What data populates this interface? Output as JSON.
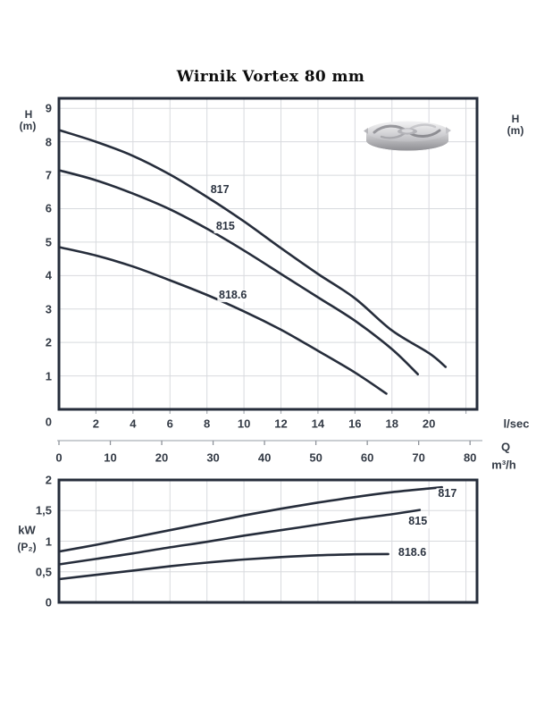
{
  "page": {
    "title": "Wirnik Vortex 80 mm"
  },
  "colors": {
    "curve": "#262d3b",
    "plot_border": "#262d3b",
    "grid": "#d8dade",
    "tick_text": "#343b46",
    "q_axis_line": "#b9bdc3",
    "q_axis_tick": "#8f949b"
  },
  "impeller": {
    "icon": "vortex-impeller-photo"
  },
  "units": {
    "flow_primary": "l/sec",
    "flow_symbol": "Q",
    "flow_secondary": "m³/h"
  },
  "chart_data": [
    {
      "id": "head_chart",
      "type": "line",
      "title": "Wirnik Vortex 80 mm",
      "ylabel": "H (m)",
      "ylabel_lines": [
        "H",
        "(m)"
      ],
      "ylabel_right_lines": [
        "H",
        "(m)"
      ],
      "x_axis": {
        "unit": "l/sec",
        "min": 0,
        "max": 22.6,
        "grid_step": 2,
        "tick_values": [
          2,
          4,
          6,
          8,
          10,
          12,
          14,
          16,
          18,
          20
        ],
        "origin_label": "0"
      },
      "x_axis_secondary": {
        "symbol": "Q",
        "unit": "m³/h",
        "tick_values": [
          0,
          10,
          20,
          30,
          40,
          50,
          60,
          70,
          80
        ],
        "lsec_per_unit": 0.27778
      },
      "y_axis": {
        "min": 0,
        "max": 9.3,
        "grid_step": 1,
        "tick_values": [
          9,
          8,
          7,
          6,
          5,
          4,
          3,
          2,
          1
        ]
      },
      "series": [
        {
          "name": "817",
          "points": [
            [
              0,
              8.35
            ],
            [
              2,
              8.0
            ],
            [
              4,
              7.58
            ],
            [
              6,
              7.02
            ],
            [
              8,
              6.35
            ],
            [
              10,
              5.62
            ],
            [
              12,
              4.82
            ],
            [
              14,
              4.05
            ],
            [
              16,
              3.32
            ],
            [
              18,
              2.36
            ],
            [
              20,
              1.68
            ],
            [
              20.9,
              1.27
            ]
          ],
          "label_at": [
            8.7,
            6.55
          ]
        },
        {
          "name": "815",
          "points": [
            [
              0,
              7.15
            ],
            [
              2,
              6.85
            ],
            [
              4,
              6.45
            ],
            [
              6,
              5.98
            ],
            [
              8,
              5.4
            ],
            [
              10,
              4.75
            ],
            [
              12,
              4.05
            ],
            [
              14,
              3.35
            ],
            [
              16,
              2.65
            ],
            [
              18,
              1.8
            ],
            [
              19.4,
              1.05
            ]
          ],
          "label_at": [
            9.0,
            5.45
          ]
        },
        {
          "name": "818.6",
          "points": [
            [
              0,
              4.85
            ],
            [
              2,
              4.6
            ],
            [
              4,
              4.27
            ],
            [
              6,
              3.86
            ],
            [
              8,
              3.42
            ],
            [
              10,
              2.93
            ],
            [
              12,
              2.38
            ],
            [
              14,
              1.75
            ],
            [
              16,
              1.1
            ],
            [
              17.7,
              0.47
            ]
          ],
          "label_at": [
            9.4,
            3.4
          ]
        }
      ]
    },
    {
      "id": "power_chart",
      "type": "line",
      "ylabel": "kW (P₂)",
      "ylabel_lines": [
        "kW",
        "(P₂)"
      ],
      "x_axis": {
        "min": 0,
        "max": 22.6,
        "grid_step": 2
      },
      "y_axis": {
        "min": 0,
        "max": 2,
        "grid_step": 0.5,
        "tick_values": [
          2,
          1.5,
          1,
          0.5,
          0
        ],
        "tick_labels": [
          "2",
          "1,5",
          "1",
          "0,5",
          "0"
        ]
      },
      "series": [
        {
          "name": "817",
          "points": [
            [
              0,
              0.83
            ],
            [
              2,
              0.94
            ],
            [
              4,
              1.06
            ],
            [
              6,
              1.18
            ],
            [
              8,
              1.3
            ],
            [
              10,
              1.42
            ],
            [
              12,
              1.53
            ],
            [
              14,
              1.63
            ],
            [
              16,
              1.72
            ],
            [
              18,
              1.8
            ],
            [
              20,
              1.86
            ],
            [
              20.7,
              1.88
            ]
          ],
          "label_at": [
            21.0,
            1.76
          ]
        },
        {
          "name": "815",
          "points": [
            [
              0,
              0.62
            ],
            [
              2,
              0.71
            ],
            [
              4,
              0.8
            ],
            [
              6,
              0.9
            ],
            [
              8,
              0.99
            ],
            [
              10,
              1.09
            ],
            [
              12,
              1.18
            ],
            [
              14,
              1.27
            ],
            [
              16,
              1.36
            ],
            [
              18,
              1.44
            ],
            [
              19.5,
              1.51
            ]
          ],
          "label_at": [
            19.4,
            1.31
          ]
        },
        {
          "name": "818.6",
          "points": [
            [
              0,
              0.38
            ],
            [
              2,
              0.45
            ],
            [
              4,
              0.52
            ],
            [
              6,
              0.59
            ],
            [
              8,
              0.65
            ],
            [
              10,
              0.7
            ],
            [
              12,
              0.74
            ],
            [
              14,
              0.77
            ],
            [
              16,
              0.785
            ],
            [
              17.8,
              0.79
            ]
          ],
          "label_at": [
            19.1,
            0.81
          ]
        }
      ]
    }
  ]
}
